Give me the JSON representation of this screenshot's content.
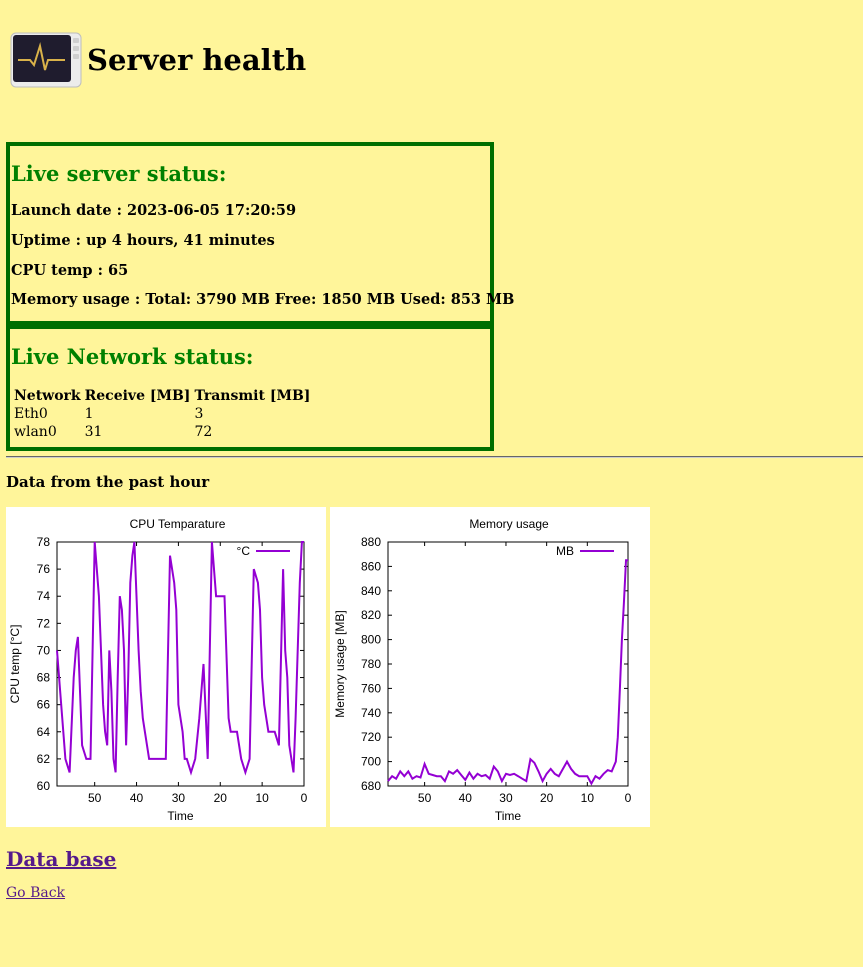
{
  "header": {
    "title": "Server health",
    "icon": "system-monitor-icon"
  },
  "server_status": {
    "title": "Live server status:",
    "launch_date": "Launch date : 2023-06-05 17:20:59",
    "uptime": "Uptime : up 4 hours, 41 minutes",
    "cpu_temp": "CPU temp : 65",
    "memory": "Memory usage : Total: 3790 MB Free: 1850 MB Used: 853 MB"
  },
  "network_status": {
    "title": "Live Network status:",
    "columns": [
      "Network",
      "Receive [MB]",
      "Transmit [MB]"
    ],
    "rows": [
      [
        "Eth0",
        "1",
        "3"
      ],
      [
        "wlan0",
        "31",
        "72"
      ]
    ]
  },
  "history": {
    "heading": "Data from the past hour"
  },
  "links": {
    "database": "Data base",
    "back": "Go Back"
  },
  "chart_data": [
    {
      "type": "line",
      "title": "CPU Temparature",
      "xlabel": "Time",
      "ylabel": "CPU temp [°C]",
      "xlim": [
        59,
        0
      ],
      "ylim": [
        60,
        78
      ],
      "xticks": [
        50,
        40,
        30,
        20,
        10,
        0
      ],
      "yticks": [
        60,
        62,
        64,
        66,
        68,
        70,
        72,
        74,
        76,
        78
      ],
      "legend": "top-right",
      "color": "#9400d3",
      "series": [
        {
          "name": "°C",
          "x": [
            59,
            58.5,
            58,
            57.5,
            57,
            56.5,
            56,
            55,
            54.5,
            54,
            53,
            52,
            51,
            50.5,
            50,
            49,
            48,
            47.5,
            47,
            46.5,
            46,
            45.5,
            45,
            44.5,
            44,
            43.5,
            43,
            42.5,
            42,
            41.5,
            41,
            40.5,
            40,
            39.5,
            39,
            38.5,
            38,
            37.5,
            37,
            36,
            35,
            34,
            33,
            32,
            31,
            30.5,
            30,
            29,
            28.5,
            28,
            27,
            26,
            25,
            24,
            23,
            22.5,
            22,
            21,
            20.5,
            20,
            19,
            18,
            17.5,
            17,
            16,
            15.5,
            15,
            14,
            13,
            12,
            11,
            10.5,
            10,
            9.5,
            9,
            8.5,
            8,
            7,
            6,
            5,
            4.5,
            4,
            3.5,
            3,
            2.5,
            2,
            1.5,
            1,
            0.5,
            0
          ],
          "y": [
            70,
            68,
            66,
            64,
            62,
            61.5,
            61,
            68,
            70,
            71,
            63,
            62,
            62,
            70,
            78,
            74,
            66,
            64,
            63,
            70,
            67,
            62,
            61,
            68,
            74,
            73,
            70,
            63,
            68,
            75,
            77,
            78,
            74,
            70,
            67,
            65,
            64,
            63,
            62,
            62,
            62,
            62,
            62,
            77,
            75,
            73,
            66,
            64,
            62,
            62,
            61,
            62,
            65,
            69,
            62,
            70,
            78,
            74,
            74,
            74,
            74,
            65,
            64,
            64,
            64,
            63,
            62,
            61,
            62,
            76,
            75,
            73,
            68,
            66,
            65,
            64,
            64,
            64,
            63,
            76,
            70,
            68,
            63,
            62,
            61,
            65,
            70,
            75,
            78,
            78
          ]
        }
      ]
    },
    {
      "type": "line",
      "title": "Memory usage",
      "xlabel": "Time",
      "ylabel": "Memory usage [MB]",
      "xlim": [
        59,
        0
      ],
      "ylim": [
        680,
        880
      ],
      "xticks": [
        50,
        40,
        30,
        20,
        10,
        0
      ],
      "yticks": [
        680,
        700,
        720,
        740,
        760,
        780,
        800,
        820,
        840,
        860,
        880
      ],
      "legend": "top-right",
      "color": "#9400d3",
      "series": [
        {
          "name": "MB",
          "x": [
            59,
            58,
            57,
            56,
            55,
            54,
            53,
            52,
            51,
            50,
            49,
            48,
            47,
            46,
            45,
            44,
            43,
            42,
            41,
            40,
            39,
            38,
            37,
            36,
            35,
            34,
            33,
            32,
            31,
            30,
            29,
            28,
            27,
            26,
            25,
            24,
            23,
            22,
            21,
            20,
            19,
            18,
            17,
            16,
            15,
            14,
            13,
            12,
            11,
            10,
            9,
            8,
            7,
            6,
            5,
            4,
            3,
            2.5,
            2,
            1.5,
            1,
            0.5,
            0
          ],
          "y": [
            684,
            688,
            686,
            692,
            688,
            692,
            686,
            688,
            687,
            698,
            690,
            689,
            688,
            688,
            684,
            692,
            690,
            693,
            689,
            685,
            691,
            686,
            690,
            688,
            689,
            686,
            696,
            692,
            684,
            690,
            689,
            690,
            688,
            686,
            684,
            702,
            699,
            692,
            684,
            690,
            694,
            690,
            688,
            694,
            700,
            694,
            690,
            688,
            688,
            688,
            682,
            688,
            686,
            690,
            693,
            692,
            700,
            720,
            760,
            800,
            830,
            865,
            865
          ]
        }
      ]
    }
  ]
}
